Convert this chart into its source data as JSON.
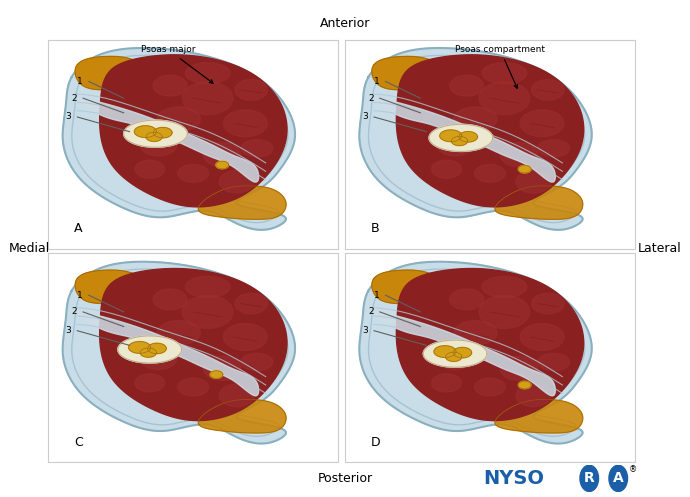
{
  "title_top": "Anterior",
  "title_bottom": "Posterior",
  "label_left": "Medial",
  "label_right": "Lateral",
  "panels": [
    {
      "id": "A",
      "label": "A",
      "annotation": "Psoas major",
      "row": 0,
      "col": 0
    },
    {
      "id": "B",
      "label": "B",
      "annotation": "Psoas compartment",
      "row": 0,
      "col": 1
    },
    {
      "id": "C",
      "label": "C",
      "annotation": null,
      "row": 1,
      "col": 0
    },
    {
      "id": "D",
      "label": "D",
      "annotation": null,
      "row": 1,
      "col": 1
    }
  ],
  "bg_color": "#ffffff",
  "border_color": "#cccccc",
  "nysora_blue": "#1a5fa8",
  "muscle_color": "#8b2020",
  "muscle_mid": "#7a1a1a",
  "fascia_blue": "#adc8d8",
  "fascia_light": "#c8dde8",
  "fat_color": "#c8860a",
  "fat_dark": "#a06808",
  "nerve_bg": "#e8dfc0",
  "nerve_yellow": "#d4a017",
  "nerve_border": "#a07010",
  "line_color": "#606060",
  "annotation_color": "#111111"
}
